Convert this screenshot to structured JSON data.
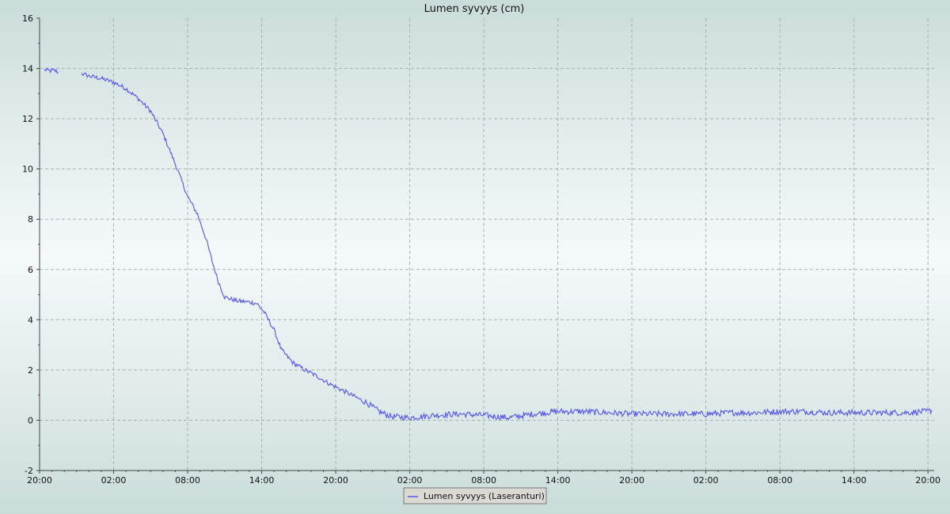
{
  "chart_data": {
    "type": "line",
    "title": "Lumen syvyys (cm)",
    "xlabel": "",
    "ylabel": "",
    "ylim": [
      -2,
      16
    ],
    "y_ticks": [
      -2,
      0,
      2,
      4,
      6,
      8,
      10,
      12,
      14,
      16
    ],
    "x_unit": "hours since first tick",
    "xlim": [
      0,
      72.5
    ],
    "x_tick_positions": [
      0,
      6,
      12,
      18,
      24,
      30,
      36,
      42,
      48,
      54,
      60,
      66,
      72
    ],
    "x_tick_labels": [
      "20:00",
      "02:00",
      "08:00",
      "14:00",
      "20:00",
      "02:00",
      "08:00",
      "14:00",
      "20:00",
      "02:00",
      "08:00",
      "14:00",
      "20:00"
    ],
    "grid": true,
    "legend_position": "bottom-center",
    "series": [
      {
        "name": "Lumen syvyys (Laseranturi)",
        "color": "#5555ee",
        "segments": [
          [
            [
              0.4,
              13.95
            ],
            [
              0.8,
              13.9
            ],
            [
              1.2,
              13.92
            ],
            [
              1.5,
              13.85
            ]
          ],
          [
            [
              3.4,
              13.8
            ],
            [
              4.0,
              13.7
            ],
            [
              5.0,
              13.6
            ],
            [
              6.0,
              13.45
            ],
            [
              7.0,
              13.2
            ],
            [
              8.0,
              12.8
            ],
            [
              9.0,
              12.3
            ],
            [
              10.0,
              11.4
            ],
            [
              11.0,
              10.2
            ],
            [
              12.0,
              8.9
            ],
            [
              12.8,
              8.2
            ],
            [
              13.5,
              7.2
            ],
            [
              14.0,
              6.3
            ],
            [
              14.5,
              5.5
            ],
            [
              15.0,
              4.9
            ],
            [
              16.0,
              4.75
            ],
            [
              17.0,
              4.7
            ],
            [
              17.6,
              4.65
            ],
            [
              18.2,
              4.3
            ],
            [
              19.0,
              3.6
            ],
            [
              19.6,
              2.8
            ],
            [
              20.5,
              2.3
            ],
            [
              21.5,
              2.0
            ],
            [
              22.5,
              1.75
            ],
            [
              23.5,
              1.45
            ],
            [
              24.5,
              1.2
            ],
            [
              25.5,
              0.95
            ],
            [
              26.5,
              0.7
            ],
            [
              27.5,
              0.35
            ],
            [
              28.5,
              0.15
            ],
            [
              30.0,
              0.1
            ],
            [
              32.0,
              0.2
            ],
            [
              34.0,
              0.25
            ],
            [
              36.0,
              0.2
            ],
            [
              38.0,
              0.1
            ],
            [
              40.0,
              0.25
            ],
            [
              42.0,
              0.35
            ],
            [
              44.0,
              0.35
            ],
            [
              46.0,
              0.3
            ],
            [
              48.0,
              0.25
            ],
            [
              50.0,
              0.25
            ],
            [
              52.0,
              0.25
            ],
            [
              54.0,
              0.25
            ],
            [
              56.0,
              0.3
            ],
            [
              58.0,
              0.3
            ],
            [
              60.0,
              0.35
            ],
            [
              62.0,
              0.35
            ],
            [
              64.0,
              0.3
            ],
            [
              66.0,
              0.3
            ],
            [
              68.0,
              0.3
            ],
            [
              70.0,
              0.3
            ],
            [
              72.0,
              0.35
            ],
            [
              72.3,
              0.4
            ]
          ]
        ]
      }
    ]
  }
}
